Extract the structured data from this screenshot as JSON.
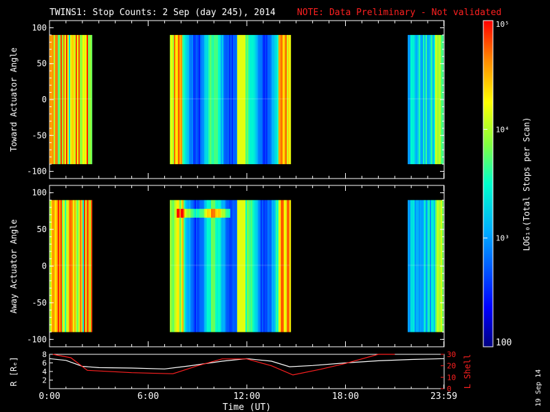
{
  "title": "TWINS1: Stop Counts:  2 Sep (day 245), 2014",
  "note": "NOTE: Data Preliminary - Not validated",
  "date_stamp": "19 Sep 14",
  "colors": {
    "title": "#ffffff",
    "note": "#ff2020",
    "r_line": "#ffffff",
    "l_line": "#ff2020",
    "background": "#000000"
  },
  "chart_data": [
    {
      "type": "heatmap",
      "ylabel": "Toward Actuator Angle",
      "ylim": [
        -110,
        110
      ],
      "yticks": [
        "100",
        "50",
        "0",
        "-50",
        "-100"
      ],
      "x_range_hours": [
        0,
        24
      ],
      "data_angle_range": [
        -90,
        90
      ],
      "segments": [
        {
          "start_h": 0.0,
          "end_h": 2.55,
          "level": "high",
          "base": 0.72
        },
        {
          "start_h": 7.35,
          "end_h": 14.6,
          "level": "mixed",
          "base": 0.42
        },
        {
          "start_h": 21.8,
          "end_h": 23.95,
          "level": "mid",
          "base": 0.45
        }
      ]
    },
    {
      "type": "heatmap",
      "ylabel": "Away Actuator Angle",
      "ylim": [
        -110,
        110
      ],
      "yticks": [
        "100",
        "50",
        "0",
        "-50",
        "-100"
      ],
      "x_range_hours": [
        0,
        24
      ],
      "data_angle_range": [
        -90,
        90
      ],
      "segments": [
        {
          "start_h": 0.0,
          "end_h": 2.55,
          "level": "high",
          "base": 0.78
        },
        {
          "start_h": 7.35,
          "end_h": 14.6,
          "level": "mixed",
          "base": 0.45
        },
        {
          "start_h": 21.8,
          "end_h": 23.95,
          "level": "mid",
          "base": 0.42
        }
      ]
    },
    {
      "type": "line",
      "ylabel_left": "R [Rₑ]",
      "ylabel_right": "L Shell",
      "xlabel": "Time (UT)",
      "xticks": [
        "0:00",
        "6:00",
        "12:00",
        "18:00",
        "23:59"
      ],
      "x_hours": [
        0,
        6,
        12,
        18,
        23.98
      ],
      "ylim_left": [
        0,
        8
      ],
      "yticks_left": [
        "8",
        "6",
        "4",
        "2"
      ],
      "ylim_right": [
        0,
        30
      ],
      "yticks_right": [
        "30",
        "20",
        "10",
        "0"
      ],
      "series": [
        {
          "name": "R",
          "axis": "left",
          "x": [
            0,
            1,
            2,
            3,
            5,
            7,
            8.5,
            10.5,
            12,
            13.5,
            14.6,
            16,
            18,
            20,
            22,
            23.98
          ],
          "values": [
            7.0,
            6.6,
            5.2,
            4.9,
            4.8,
            4.6,
            5.3,
            6.4,
            7.0,
            6.4,
            5.1,
            5.4,
            6.0,
            6.5,
            6.8,
            7.0
          ]
        },
        {
          "name": "L Shell",
          "axis": "right",
          "x": [
            0.2,
            1.3,
            2.3,
            5,
            7.5,
            9,
            10.5,
            12,
            13.5,
            14.8,
            16.5,
            18,
            20,
            21
          ],
          "values": [
            31,
            27,
            16,
            14,
            13,
            20,
            26,
            26,
            20,
            12,
            17,
            22,
            30,
            33
          ]
        }
      ]
    }
  ],
  "colorbar": {
    "label": "LOG₁₀(Total Stops per Scan)",
    "ticks": [
      "10⁵",
      "10⁴",
      "10³",
      "100"
    ],
    "tick_log_values": [
      5,
      4,
      3,
      2
    ],
    "range_log": [
      2,
      5
    ]
  }
}
